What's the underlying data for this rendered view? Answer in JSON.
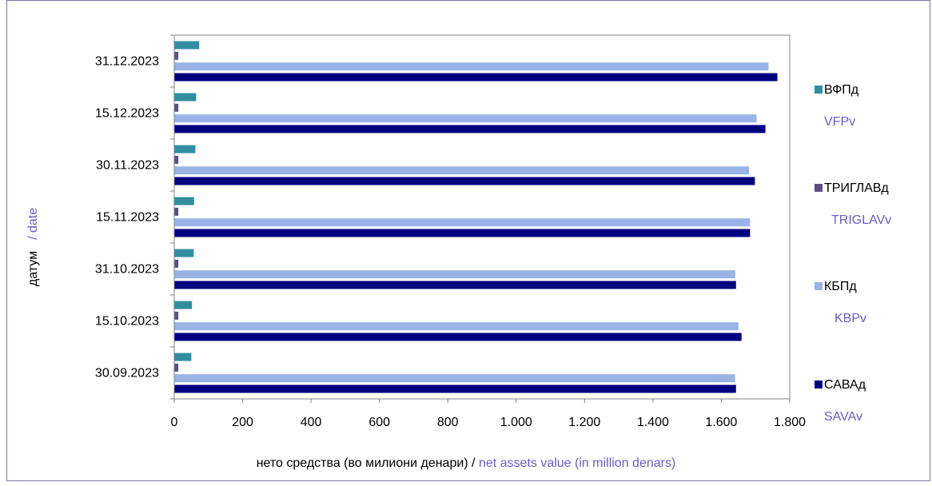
{
  "chart_data": {
    "type": "bar",
    "orientation": "horizontal",
    "categories": [
      "30.09.2023",
      "15.10.2023",
      "31.10.2023",
      "15.11.2023",
      "30.11.2023",
      "15.12.2023",
      "31.12.2023"
    ],
    "series": [
      {
        "name": "САВАд",
        "name_en": "SAVAv",
        "color": "#000080",
        "values": [
          1643,
          1659,
          1643,
          1684,
          1698,
          1729,
          1764
        ]
      },
      {
        "name": "КБПд",
        "name_en": "KBPv",
        "color": "#99b3e6",
        "values": [
          1640,
          1650,
          1641,
          1684,
          1681,
          1703,
          1738
        ]
      },
      {
        "name": "ТРИГЛАВд",
        "name_en": "TRIGLAVv",
        "color": "#5b4e80",
        "values": [
          12,
          12,
          12,
          12,
          12,
          12,
          12
        ]
      },
      {
        "name": "ВФПд",
        "name_en": "VFPv",
        "color": "#2f8fa0",
        "values": [
          50,
          52,
          57,
          58,
          62,
          64,
          73
        ]
      }
    ],
    "xlim": [
      0,
      1800
    ],
    "xticks": [
      0,
      200,
      400,
      600,
      800,
      1000,
      1200,
      1400,
      1600,
      1800
    ],
    "xtick_labels": [
      "0",
      "200",
      "400",
      "600",
      "800",
      "1.000",
      "1.200",
      "1.400",
      "1.600",
      "1.800"
    ],
    "xlabel_mk": "нето средства (во милиони денари) / ",
    "xlabel_en": "net assets value (in million denars)",
    "ylabel_mk": "датум",
    "ylabel_en": "/ date",
    "grid": false,
    "legend_position": "right"
  }
}
